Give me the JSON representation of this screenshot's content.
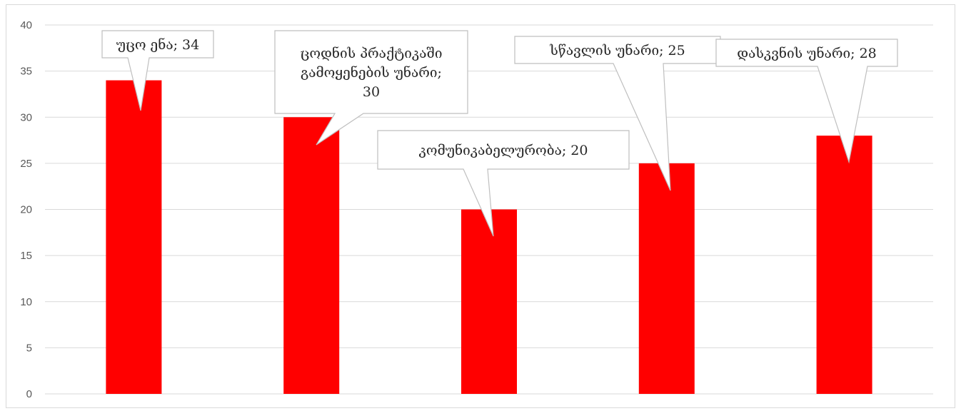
{
  "chart_data": {
    "type": "bar",
    "categories": [
      "უცო ენა",
      "ცოდნის პრაქტიკაში გამოყენების უნარი",
      "კომუნიკაბელურობა",
      "სწავლის უნარი",
      "დასკვნის უნარი"
    ],
    "values": [
      34,
      30,
      20,
      25,
      28
    ],
    "data_labels": [
      [
        "უცო ენა; 34"
      ],
      [
        "ცოდნის პრაქტიკაში",
        "გამოყენების უნარი;",
        "30"
      ],
      [
        "კომუნიკაბელურობა; 20"
      ],
      [
        "სწავლის უნარი; 25"
      ],
      [
        "დასკვნის უნარი; 28"
      ]
    ],
    "yticks": [
      "0",
      "5",
      "10",
      "15",
      "20",
      "25",
      "30",
      "35",
      "40"
    ],
    "ylim": [
      0,
      40
    ],
    "title": "",
    "xlabel": "",
    "ylabel": "",
    "grid": true,
    "legend": "none",
    "colors": {
      "bar": "#ff0000",
      "grid": "#d9d9d9",
      "callout_border": "#bfbfbf"
    }
  }
}
